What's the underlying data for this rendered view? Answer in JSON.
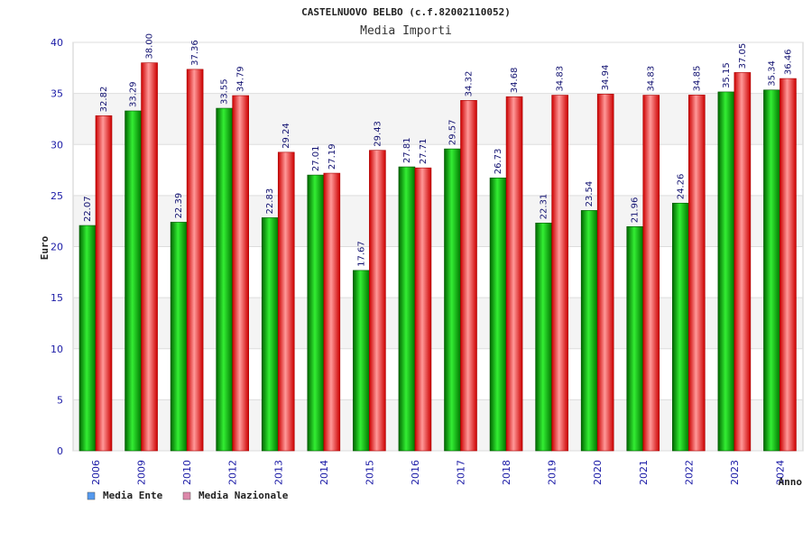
{
  "chart_data": {
    "type": "bar",
    "title": "CASTELNUOVO BELBO (c.f.82002110052)",
    "subtitle": "Media Importi",
    "xlabel": "Anno",
    "ylabel": "Euro",
    "ylim": [
      0,
      40
    ],
    "yticks": [
      0,
      5,
      10,
      15,
      20,
      25,
      30,
      35,
      40
    ],
    "grid": true,
    "legend_position": "bottom-left",
    "categories": [
      "2006",
      "2009",
      "2010",
      "2012",
      "2013",
      "2014",
      "2015",
      "2016",
      "2017",
      "2018",
      "2019",
      "2020",
      "2021",
      "2022",
      "2023",
      "2024"
    ],
    "series": [
      {
        "name": "Media Ente",
        "color": "#00bb00",
        "legend_color": "#5599ee",
        "values": [
          22.07,
          33.29,
          22.39,
          33.55,
          22.83,
          27.01,
          17.67,
          27.81,
          29.57,
          26.73,
          22.31,
          23.54,
          21.96,
          24.26,
          35.15,
          35.34
        ],
        "labels": [
          "22.07",
          "33.29",
          "22.39",
          "33.55",
          "22.83",
          "27.01",
          "17.67",
          "27.81",
          "29.57",
          "26.73",
          "22.31",
          "23.54",
          "21.96",
          "24.26",
          "35.15",
          "35.34"
        ]
      },
      {
        "name": "Media Nazionale",
        "color": "#ee1111",
        "legend_color": "#dd88aa",
        "values": [
          32.82,
          38.0,
          37.36,
          34.79,
          29.24,
          27.19,
          29.43,
          27.71,
          34.32,
          34.68,
          34.83,
          34.94,
          34.83,
          34.85,
          37.05,
          36.46
        ],
        "labels": [
          "32.82",
          "38.00",
          "37.36",
          "34.79",
          "29.24",
          "27.19",
          "29.43",
          "27.71",
          "34.32",
          "34.68",
          "34.83",
          "34.94",
          "34.83",
          "34.85",
          "37.05",
          "36.46"
        ]
      }
    ]
  }
}
